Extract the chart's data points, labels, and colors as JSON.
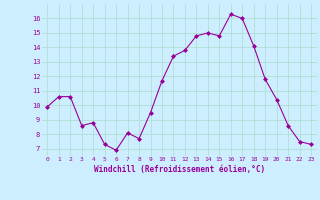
{
  "x": [
    0,
    1,
    2,
    3,
    4,
    5,
    6,
    7,
    8,
    9,
    10,
    11,
    12,
    13,
    14,
    15,
    16,
    17,
    18,
    19,
    20,
    21,
    22,
    23
  ],
  "y": [
    9.9,
    10.6,
    10.6,
    8.6,
    8.8,
    7.3,
    6.9,
    8.1,
    7.7,
    9.5,
    11.7,
    13.4,
    13.8,
    14.8,
    15.0,
    14.8,
    16.3,
    16.0,
    14.1,
    11.8,
    10.4,
    8.6,
    7.5,
    7.3
  ],
  "line_color": "#990099",
  "marker": "D",
  "marker_size": 2,
  "background_color": "#cceeff",
  "grid_color": "#aaddcc",
  "xlabel": "Windchill (Refroidissement éolien,°C)",
  "xlabel_color": "#990099",
  "tick_color": "#990099",
  "ylim": [
    6.5,
    17.0
  ],
  "xlim": [
    -0.5,
    23.5
  ],
  "yticks": [
    7,
    8,
    9,
    10,
    11,
    12,
    13,
    14,
    15,
    16
  ],
  "xticks": [
    0,
    1,
    2,
    3,
    4,
    5,
    6,
    7,
    8,
    9,
    10,
    11,
    12,
    13,
    14,
    15,
    16,
    17,
    18,
    19,
    20,
    21,
    22,
    23
  ]
}
